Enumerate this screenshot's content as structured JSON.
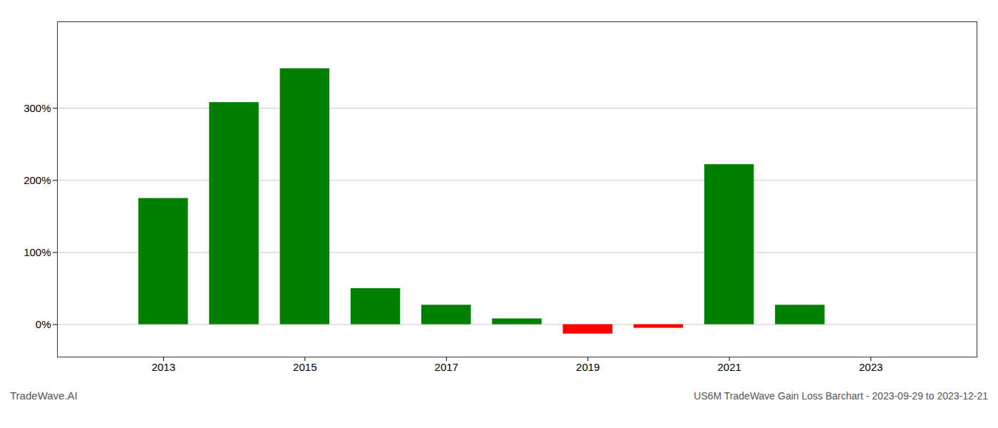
{
  "chart_data": {
    "type": "bar",
    "title": "US6M TradeWave Gain Loss Barchart - 2023-09-29 to 2023-12-21",
    "annotations": [
      "TradeWave.AI"
    ],
    "x": [
      2013,
      2014,
      2015,
      2016,
      2017,
      2018,
      2019,
      2020,
      2021,
      2022
    ],
    "values": [
      1.75,
      3.08,
      3.55,
      0.5,
      0.27,
      0.08,
      -0.13,
      -0.05,
      2.22,
      0.27
    ],
    "colors": [
      "#008000",
      "#008000",
      "#008000",
      "#008000",
      "#008000",
      "#008000",
      "#ff0000",
      "#ff0000",
      "#008000",
      "#008000"
    ],
    "xlim": [
      2011.5,
      2024.5
    ],
    "xticks": [
      2013,
      2015,
      2017,
      2019,
      2021,
      2023
    ],
    "ylim": [
      -0.45,
      4.2
    ],
    "yticks": [
      {
        "value": 0.0,
        "label": "0%"
      },
      {
        "value": 1.0,
        "label": "100%"
      },
      {
        "value": 2.0,
        "label": "200%"
      },
      {
        "value": 3.0,
        "label": "300%"
      }
    ],
    "grid": true
  }
}
